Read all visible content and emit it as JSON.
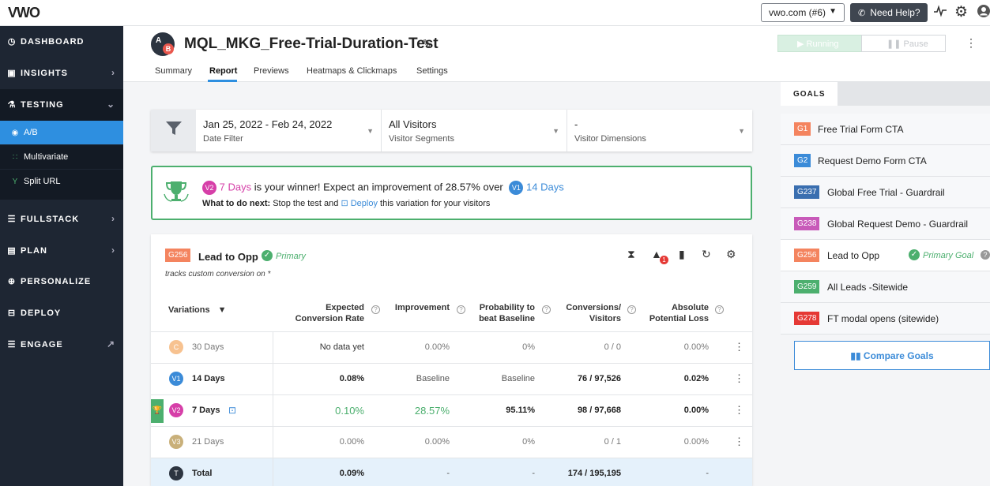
{
  "topbar": {
    "logo": "VWO",
    "account": "vwo.com (#6)",
    "help_label": "Need Help?"
  },
  "sidebar": {
    "items": [
      {
        "label": "DASHBOARD"
      },
      {
        "label": "INSIGHTS"
      },
      {
        "label": "TESTING"
      },
      {
        "label": "FULLSTACK"
      },
      {
        "label": "PLAN"
      },
      {
        "label": "PERSONALIZE"
      },
      {
        "label": "DEPLOY"
      },
      {
        "label": "ENGAGE"
      }
    ],
    "testing_sub": [
      {
        "label": "A/B"
      },
      {
        "label": "Multivariate"
      },
      {
        "label": "Split URL"
      }
    ]
  },
  "header": {
    "ab_a": "A",
    "ab_b": "B",
    "title": "MQL_MKG_Free-Trial-Duration-Test",
    "tabs": [
      {
        "label": "Summary"
      },
      {
        "label": "Report"
      },
      {
        "label": "Previews"
      },
      {
        "label": "Heatmaps & Clickmaps"
      },
      {
        "label": "Settings"
      }
    ],
    "running_label": "Running",
    "pause_label": "Pause"
  },
  "filters": {
    "date_value": "Jan 25, 2022 - Feb 24, 2022",
    "date_label": "Date Filter",
    "segment_value": "All Visitors",
    "segment_label": "Visitor Segments",
    "dimension_value": "-",
    "dimension_label": "Visitor Dimensions"
  },
  "winner": {
    "winner_badge": "V2",
    "winner_name": "7 Days",
    "text_mid": "is your winner! Expect an improvement of 28.57% over",
    "baseline_badge": "V1",
    "baseline_name": "14 Days",
    "next_label": "What to do next:",
    "next_text_1": "Stop the test and",
    "deploy_label": "Deploy",
    "next_text_2": "this variation for your visitors"
  },
  "goal_card": {
    "tag": "G256",
    "name": "Lead to Opp",
    "primary": "Primary",
    "subtitle": "tracks custom conversion on *",
    "alert_count": "1",
    "columns": {
      "variations": "Variations",
      "expected_1": "Expected",
      "expected_2": "Conversion Rate",
      "improvement": "Improvement",
      "prob_1": "Probability to",
      "prob_2": "beat Baseline",
      "conv_1": "Conversions/",
      "conv_2": "Visitors",
      "loss_1": "Absolute",
      "loss_2": "Potential Loss"
    },
    "rows": [
      {
        "badge": "C",
        "name": "30 Days",
        "rate": "No data yet",
        "improvement": "0.00%",
        "prob": "0%",
        "conv": "0 / 0",
        "loss": "0.00%"
      },
      {
        "badge": "V1",
        "name": "14 Days",
        "rate": "0.08%",
        "improvement": "Baseline",
        "prob": "Baseline",
        "conv": "76 / 97,526",
        "loss": "0.02%"
      },
      {
        "badge": "V2",
        "name": "7 Days",
        "rate": "0.10%",
        "improvement": "28.57%",
        "prob": "95.11%",
        "conv": "98 / 97,668",
        "loss": "0.00%"
      },
      {
        "badge": "V3",
        "name": "21 Days",
        "rate": "0.00%",
        "improvement": "0.00%",
        "prob": "0%",
        "conv": "0 / 1",
        "loss": "0.00%"
      },
      {
        "badge": "T",
        "name": "Total",
        "rate": "0.09%",
        "improvement": "-",
        "prob": "-",
        "conv": "174 / 195,195",
        "loss": "-"
      }
    ]
  },
  "goals_panel": {
    "tab_label": "GOALS",
    "goals": [
      {
        "tag": "G1",
        "name": "Free Trial Form CTA",
        "color": "#f4845f"
      },
      {
        "tag": "G2",
        "name": "Request Demo Form CTA",
        "color": "#3b8bd8"
      },
      {
        "tag": "G237",
        "name": "Global Free Trial - Guardrail",
        "color": "#3a6fb0"
      },
      {
        "tag": "G238",
        "name": "Global Request Demo - Guardrail",
        "color": "#c85ab9"
      },
      {
        "tag": "G256",
        "name": "Lead to Opp",
        "color": "#f4845f"
      },
      {
        "tag": "G259",
        "name": "All Leads -Sitewide",
        "color": "#4caf6e"
      },
      {
        "tag": "G278",
        "name": "FT modal opens (sitewide)",
        "color": "#e53935"
      }
    ],
    "primary_goal": "Primary Goal",
    "compare_label": "Compare Goals"
  }
}
